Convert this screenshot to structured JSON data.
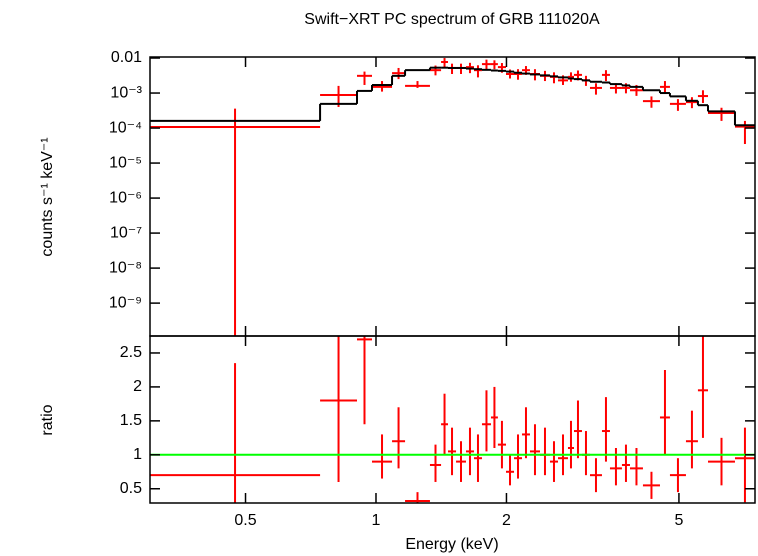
{
  "chart_data": [
    {
      "type": "spectrum",
      "title": "Swift−XRT PC spectrum of GRB 111020A",
      "ylabel": "counts s⁻¹ keV⁻¹",
      "xlog": true,
      "ylog": true,
      "xlim": [
        0.301,
        7.49
      ],
      "ylim": [
        1.15e-10,
        0.0107
      ],
      "xticks": [
        0.5,
        1,
        2,
        5
      ],
      "yticks": [
        0.01,
        {
          "value": 0.001,
          "label": "10⁻³"
        },
        {
          "value": 0.0001,
          "label": "10⁻⁴"
        },
        {
          "value": 1e-05,
          "label": "10⁻⁵"
        },
        {
          "value": 1e-06,
          "label": "10⁻⁶"
        },
        {
          "value": 1e-07,
          "label": "10⁻⁷"
        },
        {
          "value": 1e-08,
          "label": "10⁻⁸"
        },
        {
          "value": 1e-09,
          "label": "10⁻⁹"
        }
      ],
      "series": [
        {
          "style": "crosses",
          "color": "#ff0000",
          "bins": [
            0.301,
            0.743,
            0.904,
            0.979,
            1.089,
            1.167,
            1.332,
            1.413,
            1.466,
            1.53,
            1.613,
            1.683,
            1.756,
            1.842,
            1.911,
            1.995,
            2.082,
            2.172,
            2.266,
            2.39,
            2.52,
            2.63,
            2.773,
            2.863,
            2.987,
            3.117,
            3.322,
            3.466,
            3.694,
            3.855,
            4.13,
            4.521,
            4.767,
            5.19,
            5.531,
            5.835,
            6.734,
            7.487
          ],
          "values": [
            0.000107,
            0.00088,
            0.0031,
            0.0015,
            0.0037,
            0.0016,
            0.0045,
            0.0077,
            0.0052,
            0.0052,
            0.0055,
            0.0045,
            0.0067,
            0.0067,
            0.0055,
            0.0035,
            0.0035,
            0.0045,
            0.0035,
            0.0031,
            0.0029,
            0.0023,
            0.0029,
            0.0033,
            0.0023,
            0.0014,
            0.0033,
            0.0014,
            0.0014,
            0.0012,
            0.00059,
            0.0015,
            0.00049,
            0.00055,
            0.00082,
            0.00027,
            0.00011
          ],
          "y_lo": [
            0,
            0.0004,
            0.0017,
            0.0011,
            0.0025,
            0.0014,
            0.0032,
            0.0053,
            0.0035,
            0.0035,
            0.0037,
            0.0028,
            0.0048,
            0.0048,
            0.0038,
            0.0026,
            0.0024,
            0.0033,
            0.0023,
            0.0022,
            0.0019,
            0.0017,
            0.0021,
            0.0023,
            0.0016,
            0.0009,
            0.0022,
            0.00097,
            0.00098,
            0.00083,
            0.00038,
            0.00097,
            0.00031,
            0.00037,
            0.00052,
            0.00016,
            3.5e-05
          ],
          "y_hi": [
            0.00036,
            0.0016,
            0.0041,
            0.0022,
            0.0052,
            0.0022,
            0.0061,
            0.01,
            0.0069,
            0.0069,
            0.0073,
            0.0062,
            0.009,
            0.0086,
            0.0072,
            0.0047,
            0.0048,
            0.0059,
            0.0048,
            0.0043,
            0.0039,
            0.0032,
            0.0039,
            0.0044,
            0.0031,
            0.0019,
            0.0045,
            0.0019,
            0.0019,
            0.0017,
            0.0008,
            0.0022,
            0.00067,
            0.00076,
            0.0012,
            0.00038,
            0.00016
          ]
        },
        {
          "style": "steps",
          "color": "#000000",
          "bins": [
            0.301,
            0.743,
            0.904,
            0.979,
            1.089,
            1.167,
            1.332,
            1.413,
            1.466,
            1.53,
            1.613,
            1.683,
            1.756,
            1.842,
            1.911,
            1.995,
            2.082,
            2.172,
            2.266,
            2.39,
            2.52,
            2.63,
            2.773,
            2.863,
            2.987,
            3.117,
            3.322,
            3.466,
            3.694,
            3.855,
            4.13,
            4.521,
            4.767,
            5.19,
            5.531,
            5.835,
            6.734,
            7.487
          ],
          "values": [
            0.00016,
            0.00049,
            0.00115,
            0.0017,
            0.0031,
            0.0045,
            0.0053,
            0.0053,
            0.0052,
            0.0052,
            0.005,
            0.0048,
            0.0046,
            0.0044,
            0.0043,
            0.0041,
            0.0038,
            0.0036,
            0.0034,
            0.0032,
            0.003,
            0.0028,
            0.0026,
            0.0025,
            0.0023,
            0.0021,
            0.002,
            0.0018,
            0.00165,
            0.0015,
            0.0012,
            0.001,
            0.0008,
            0.0006,
            0.00045,
            0.0003,
            0.00012
          ]
        }
      ]
    },
    {
      "type": "spectrum",
      "xlabel": "Energy (keV)",
      "ylabel": "ratio",
      "xlog": true,
      "ylog": false,
      "xlim": [
        0.301,
        7.49
      ],
      "ylim": [
        0.29,
        2.75
      ],
      "xticks": [
        0.5,
        1,
        2,
        5
      ],
      "yticks": [
        0.5,
        1,
        1.5,
        2,
        2.5
      ],
      "hline": {
        "value": 1,
        "color": "#00ff00"
      },
      "series": [
        {
          "style": "crosses",
          "color": "#ff0000",
          "bins": [
            0.301,
            0.743,
            0.904,
            0.979,
            1.089,
            1.167,
            1.332,
            1.413,
            1.466,
            1.53,
            1.613,
            1.683,
            1.756,
            1.842,
            1.911,
            1.995,
            2.082,
            2.172,
            2.266,
            2.39,
            2.52,
            2.63,
            2.773,
            2.863,
            2.987,
            3.117,
            3.322,
            3.466,
            3.694,
            3.855,
            4.13,
            4.521,
            4.767,
            5.19,
            5.531,
            5.835,
            6.734,
            7.487
          ],
          "values": [
            0.7,
            1.8,
            2.7,
            0.9,
            1.2,
            0.32,
            0.85,
            1.45,
            1.05,
            0.9,
            1.05,
            0.95,
            1.45,
            1.55,
            1.15,
            0.75,
            0.95,
            1.3,
            1.05,
            1.0,
            0.9,
            0.95,
            1.1,
            1.35,
            1.0,
            0.7,
            1.35,
            0.8,
            0.85,
            0.8,
            0.55,
            1.55,
            0.7,
            1.2,
            1.95,
            0.9,
            0.95
          ],
          "y_lo": [
            0,
            0.6,
            1.45,
            0.65,
            0.8,
            0.29,
            0.6,
            1.0,
            0.7,
            0.6,
            0.7,
            0.6,
            1.05,
            1.1,
            0.8,
            0.55,
            0.65,
            0.95,
            0.7,
            0.7,
            0.6,
            0.7,
            0.8,
            0.95,
            0.7,
            0.45,
            0.9,
            0.55,
            0.6,
            0.55,
            0.35,
            1.0,
            0.45,
            0.8,
            1.25,
            0.55,
            0.3
          ],
          "y_hi": [
            2.35,
            3.0,
            3.6,
            1.3,
            1.7,
            0.45,
            1.15,
            1.9,
            1.4,
            1.2,
            1.4,
            1.3,
            1.95,
            2.0,
            1.5,
            1.0,
            1.3,
            1.7,
            1.45,
            1.4,
            1.2,
            1.3,
            1.5,
            1.8,
            1.35,
            0.95,
            1.85,
            1.1,
            1.15,
            1.1,
            0.75,
            2.25,
            0.95,
            1.65,
            2.75,
            1.25,
            1.4
          ]
        }
      ]
    }
  ]
}
